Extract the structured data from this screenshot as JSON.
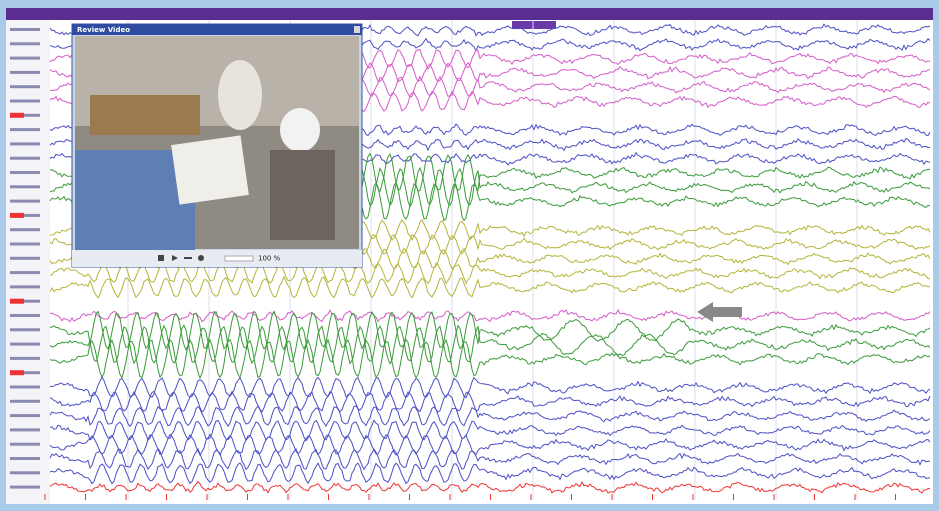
{
  "video_window": {
    "title": "Review Video",
    "zoom": "100 %"
  }
}
